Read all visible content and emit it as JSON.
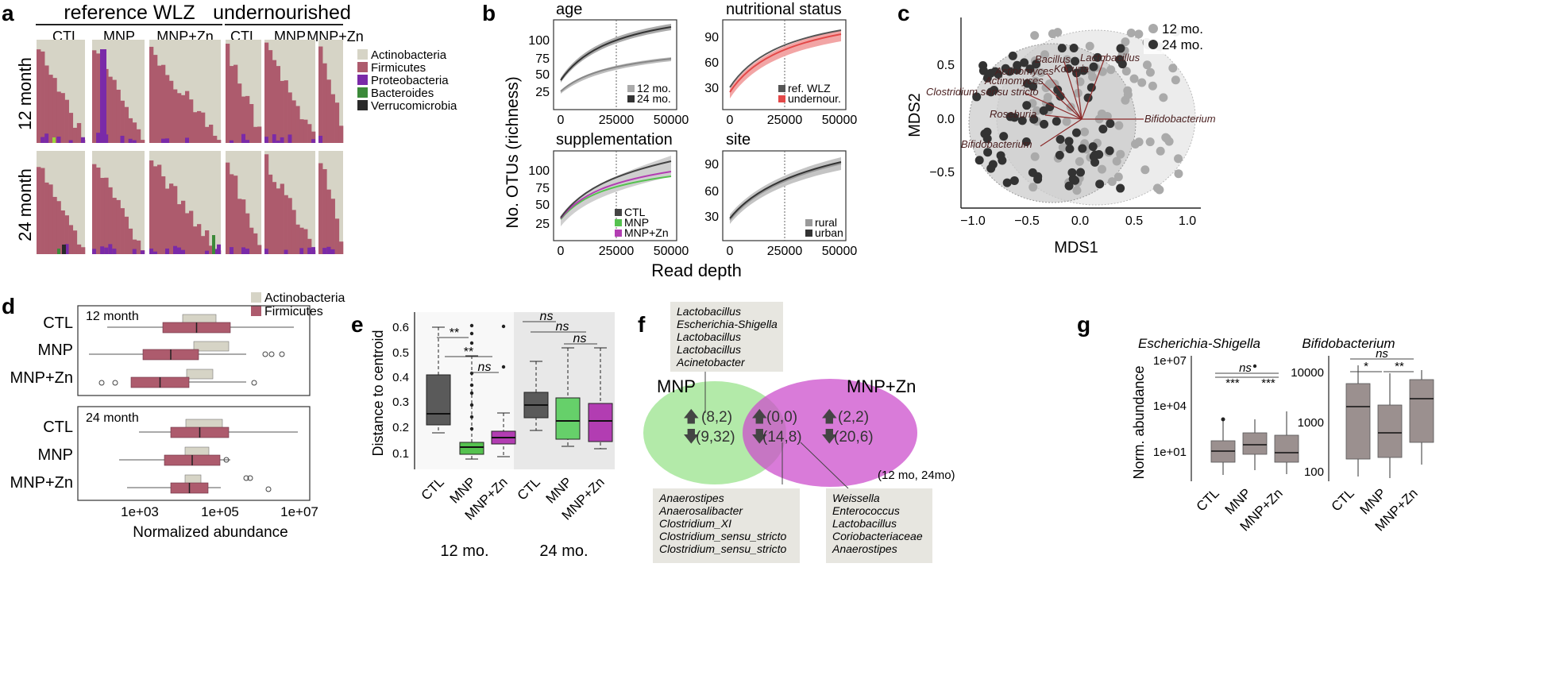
{
  "colors": {
    "actino": "#d6d4c6",
    "firmi": "#ad5b6d",
    "proteo": "#7a2aa8",
    "bactero": "#3c8a3a",
    "verruco": "#2a2a2a",
    "ctl": "#5a5a5a",
    "mnp": "#55c24f",
    "mnpzn": "#b23db2",
    "undernour": "#e34848",
    "gray_box": "#9b908f",
    "panel_bg": "#ececec"
  },
  "panel_a": {
    "letter": "a",
    "group_ref": "reference WLZ",
    "group_und": "undernourished",
    "col_labels": [
      "CTL",
      "MNP",
      "MNP+Zn",
      "CTL",
      "MNP",
      "MNP+Zn"
    ],
    "row_labels": [
      "12 month",
      "24 month"
    ],
    "legend": [
      "Actinobacteria",
      "Firmicutes",
      "Proteobacteria",
      "Bacteroides",
      "Verrucomicrobia"
    ]
  },
  "panel_b": {
    "letter": "b",
    "ylabel": "No. OTUs (richness)",
    "xlabel": "Read depth",
    "x_ticks": [
      "0",
      "25000",
      "50000"
    ],
    "subplots": [
      {
        "title": "age",
        "y_ticks": [
          "25",
          "50",
          "75",
          "100"
        ],
        "legend": [
          "12 mo.",
          "24 mo."
        ]
      },
      {
        "title": "nutritional status",
        "y_ticks": [
          "30",
          "60",
          "90"
        ],
        "legend": [
          "ref. WLZ",
          "undernour."
        ]
      },
      {
        "title": "supplementation",
        "y_ticks": [
          "25",
          "50",
          "75",
          "100"
        ],
        "legend": [
          "CTL",
          "MNP",
          "MNP+Zn"
        ]
      },
      {
        "title": "site",
        "y_ticks": [
          "30",
          "60",
          "90"
        ],
        "legend": [
          "rural",
          "urban"
        ]
      }
    ]
  },
  "panel_c": {
    "letter": "c",
    "xlabel": "MDS1",
    "ylabel": "MDS2",
    "x_ticks": [
      "−1.0",
      "−0.5",
      "0.0",
      "0.5",
      "1.0"
    ],
    "y_ticks": [
      "0.5",
      "0.0",
      "−0.5"
    ],
    "legend": [
      "12 mo.",
      "24 mo."
    ],
    "arrows": [
      "Bacillus",
      "Lactobacillus",
      "Kocuria",
      "Actinomyces",
      "Actinomyces",
      "Clostridium sensu stricto",
      "Roseburia",
      "Bifidobacterium",
      "Bifidobacterium"
    ]
  },
  "panel_d": {
    "letter": "d",
    "legend": [
      "Actinobacteria",
      "Firmicutes"
    ],
    "section_labels": [
      "12 month",
      "24 month"
    ],
    "row_labels": [
      "CTL",
      "MNP",
      "MNP+Zn",
      "CTL",
      "MNP",
      "MNP+Zn"
    ],
    "x_ticks": [
      "1e+03",
      "1e+05",
      "1e+07"
    ],
    "xlabel": "Normalized abundance"
  },
  "panel_e": {
    "letter": "e",
    "ylabel": "Distance to centroid",
    "y_ticks": [
      "0.6",
      "0.5",
      "0.4",
      "0.3",
      "0.2",
      "0.1"
    ],
    "x_labels": [
      "CTL",
      "MNP",
      "MNP+Zn",
      "CTL",
      "MNP",
      "MNP+Zn"
    ],
    "group_labels": [
      "12 mo.",
      "24 mo."
    ],
    "sig": [
      "**",
      "**",
      "ns",
      "ns",
      "ns",
      "ns"
    ]
  },
  "panel_f": {
    "letter": "f",
    "label_mnp": "MNP",
    "label_mnpzn": "MNP+Zn",
    "mnp_counts": [
      "(8,2)",
      "(9,32)"
    ],
    "shared_counts": [
      "(0,0)",
      "(14,8)"
    ],
    "mnpzn_counts": [
      "(2,2)",
      "(20,6)"
    ],
    "note": "(12 mo, 24mo)",
    "box_top": [
      "Lactobacillus",
      "Escherichia-Shigella",
      "Lactobacillus",
      "Lactobacillus",
      "Acinetobacter"
    ],
    "box_shared": [
      "Anaerostipes",
      "Anaerosalibacter",
      "Clostridium_XI",
      "Clostridium_sensu_stricto",
      "Clostridium_sensu_stricto"
    ],
    "box_mnpzn": [
      "Weissella",
      "Enterococcus",
      "Lactobacillus",
      "Coriobacteriaceae",
      "Anaerostipes"
    ]
  },
  "panel_g": {
    "letter": "g",
    "ylabel": "Norm. abundance",
    "titles": [
      "Escherichia-Shigella",
      "Bifidobacterium"
    ],
    "y_ticks_left": [
      "1e+07",
      "1e+04",
      "1e+01"
    ],
    "y_ticks_right": [
      "10000",
      "1000",
      "100"
    ],
    "x_labels": [
      "CTL",
      "MNP",
      "MNP+Zn"
    ],
    "sig_left": [
      "ns",
      "***",
      "***"
    ],
    "sig_right": [
      "ns",
      "*",
      "**"
    ]
  }
}
